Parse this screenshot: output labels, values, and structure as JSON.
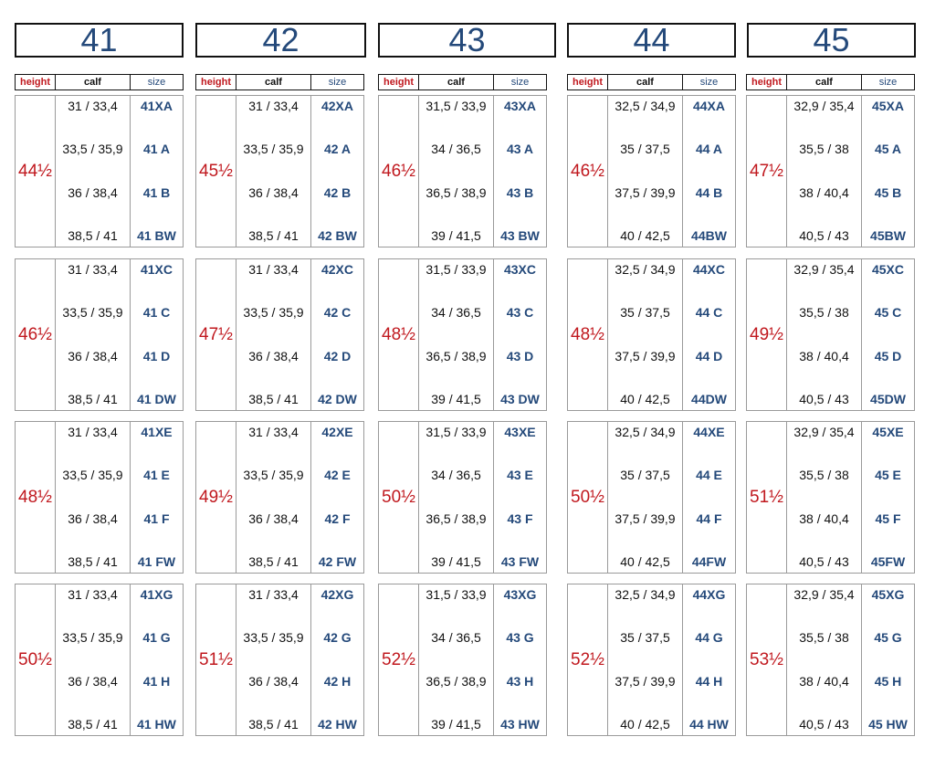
{
  "headers": {
    "height": "height",
    "calf": "calf",
    "size": "size"
  },
  "columns": [
    {
      "title": "41",
      "blocks": [
        {
          "height": "44½",
          "rows": [
            {
              "calf": "31 / 33,4",
              "size": "41XA"
            },
            {
              "calf": "33,5 / 35,9",
              "size": "41 A"
            },
            {
              "calf": "36 / 38,4",
              "size": "41 B"
            },
            {
              "calf": "38,5 / 41",
              "size": "41 BW"
            }
          ]
        },
        {
          "height": "46½",
          "rows": [
            {
              "calf": "31 / 33,4",
              "size": "41XC"
            },
            {
              "calf": "33,5 / 35,9",
              "size": "41 C"
            },
            {
              "calf": "36 / 38,4",
              "size": "41 D"
            },
            {
              "calf": "38,5 / 41",
              "size": "41 DW"
            }
          ]
        },
        {
          "height": "48½",
          "rows": [
            {
              "calf": "31 / 33,4",
              "size": "41XE"
            },
            {
              "calf": "33,5 / 35,9",
              "size": "41 E"
            },
            {
              "calf": "36 / 38,4",
              "size": "41 F"
            },
            {
              "calf": "38,5 / 41",
              "size": "41 FW"
            }
          ]
        },
        {
          "height": "50½",
          "rows": [
            {
              "calf": "31 / 33,4",
              "size": "41XG"
            },
            {
              "calf": "33,5 / 35,9",
              "size": "41 G"
            },
            {
              "calf": "36 / 38,4",
              "size": "41 H"
            },
            {
              "calf": "38,5 / 41",
              "size": "41 HW"
            }
          ]
        }
      ]
    },
    {
      "title": "42",
      "blocks": [
        {
          "height": "45½",
          "rows": [
            {
              "calf": "31 / 33,4",
              "size": "42XA"
            },
            {
              "calf": "33,5 / 35,9",
              "size": "42 A"
            },
            {
              "calf": "36 / 38,4",
              "size": "42 B"
            },
            {
              "calf": "38,5 / 41",
              "size": "42 BW"
            }
          ]
        },
        {
          "height": "47½",
          "rows": [
            {
              "calf": "31 / 33,4",
              "size": "42XC"
            },
            {
              "calf": "33,5 / 35,9",
              "size": "42 C"
            },
            {
              "calf": "36 / 38,4",
              "size": "42 D"
            },
            {
              "calf": "38,5 / 41",
              "size": "42 DW"
            }
          ]
        },
        {
          "height": "49½",
          "rows": [
            {
              "calf": "31 / 33,4",
              "size": "42XE"
            },
            {
              "calf": "33,5 / 35,9",
              "size": "42 E"
            },
            {
              "calf": "36 / 38,4",
              "size": "42 F"
            },
            {
              "calf": "38,5 / 41",
              "size": "42 FW"
            }
          ]
        },
        {
          "height": "51½",
          "rows": [
            {
              "calf": "31 / 33,4",
              "size": "42XG"
            },
            {
              "calf": "33,5 / 35,9",
              "size": "42 G"
            },
            {
              "calf": "36 / 38,4",
              "size": "42 H"
            },
            {
              "calf": "38,5 / 41",
              "size": "42 HW"
            }
          ]
        }
      ]
    },
    {
      "title": "43",
      "blocks": [
        {
          "height": "46½",
          "rows": [
            {
              "calf": "31,5 / 33,9",
              "size": "43XA"
            },
            {
              "calf": "34 / 36,5",
              "size": "43 A"
            },
            {
              "calf": "36,5 / 38,9",
              "size": "43 B"
            },
            {
              "calf": "39 / 41,5",
              "size": "43 BW"
            }
          ]
        },
        {
          "height": "48½",
          "rows": [
            {
              "calf": "31,5 / 33,9",
              "size": "43XC"
            },
            {
              "calf": "34 / 36,5",
              "size": "43 C"
            },
            {
              "calf": "36,5 / 38,9",
              "size": "43 D"
            },
            {
              "calf": "39 / 41,5",
              "size": "43 DW"
            }
          ]
        },
        {
          "height": "50½",
          "rows": [
            {
              "calf": "31,5 / 33,9",
              "size": "43XE"
            },
            {
              "calf": "34 / 36,5",
              "size": "43 E"
            },
            {
              "calf": "36,5 / 38,9",
              "size": "43 F"
            },
            {
              "calf": "39 / 41,5",
              "size": "43 FW"
            }
          ]
        },
        {
          "height": "52½",
          "rows": [
            {
              "calf": "31,5 / 33,9",
              "size": "43XG"
            },
            {
              "calf": "34 / 36,5",
              "size": "43 G"
            },
            {
              "calf": "36,5 / 38,9",
              "size": "43 H"
            },
            {
              "calf": "39 / 41,5",
              "size": "43 HW"
            }
          ]
        }
      ]
    },
    {
      "title": "44",
      "blocks": [
        {
          "height": "46½",
          "rows": [
            {
              "calf": "32,5 / 34,9",
              "size": "44XA"
            },
            {
              "calf": "35 / 37,5",
              "size": "44 A"
            },
            {
              "calf": "37,5 / 39,9",
              "size": "44 B"
            },
            {
              "calf": "40 / 42,5",
              "size": "44BW"
            }
          ]
        },
        {
          "height": "48½",
          "rows": [
            {
              "calf": "32,5 / 34,9",
              "size": "44XC"
            },
            {
              "calf": "35 / 37,5",
              "size": "44 C"
            },
            {
              "calf": "37,5 / 39,9",
              "size": "44 D"
            },
            {
              "calf": "40 / 42,5",
              "size": "44DW"
            }
          ]
        },
        {
          "height": "50½",
          "rows": [
            {
              "calf": "32,5 / 34,9",
              "size": "44XE"
            },
            {
              "calf": "35 / 37,5",
              "size": "44 E"
            },
            {
              "calf": "37,5 / 39,9",
              "size": "44 F"
            },
            {
              "calf": "40 / 42,5",
              "size": "44FW"
            }
          ]
        },
        {
          "height": "52½",
          "rows": [
            {
              "calf": "32,5 / 34,9",
              "size": "44XG"
            },
            {
              "calf": "35 / 37,5",
              "size": "44 G"
            },
            {
              "calf": "37,5 / 39,9",
              "size": "44 H"
            },
            {
              "calf": "40 / 42,5",
              "size": "44 HW"
            }
          ]
        }
      ]
    },
    {
      "title": "45",
      "blocks": [
        {
          "height": "47½",
          "rows": [
            {
              "calf": "32,9 / 35,4",
              "size": "45XA"
            },
            {
              "calf": "35,5 / 38",
              "size": "45 A"
            },
            {
              "calf": "38 / 40,4",
              "size": "45 B"
            },
            {
              "calf": "40,5 / 43",
              "size": "45BW"
            }
          ]
        },
        {
          "height": "49½",
          "rows": [
            {
              "calf": "32,9 / 35,4",
              "size": "45XC"
            },
            {
              "calf": "35,5 / 38",
              "size": "45 C"
            },
            {
              "calf": "38 / 40,4",
              "size": "45 D"
            },
            {
              "calf": "40,5 / 43",
              "size": "45DW"
            }
          ]
        },
        {
          "height": "51½",
          "rows": [
            {
              "calf": "32,9 / 35,4",
              "size": "45XE"
            },
            {
              "calf": "35,5 / 38",
              "size": "45 E"
            },
            {
              "calf": "38 / 40,4",
              "size": "45 F"
            },
            {
              "calf": "40,5 / 43",
              "size": "45FW"
            }
          ]
        },
        {
          "height": "53½",
          "rows": [
            {
              "calf": "32,9 / 35,4",
              "size": "45XG"
            },
            {
              "calf": "35,5 / 38",
              "size": "45 G"
            },
            {
              "calf": "38 / 40,4",
              "size": "45 H"
            },
            {
              "calf": "40,5 / 43",
              "size": "45 HW"
            }
          ]
        }
      ]
    }
  ]
}
